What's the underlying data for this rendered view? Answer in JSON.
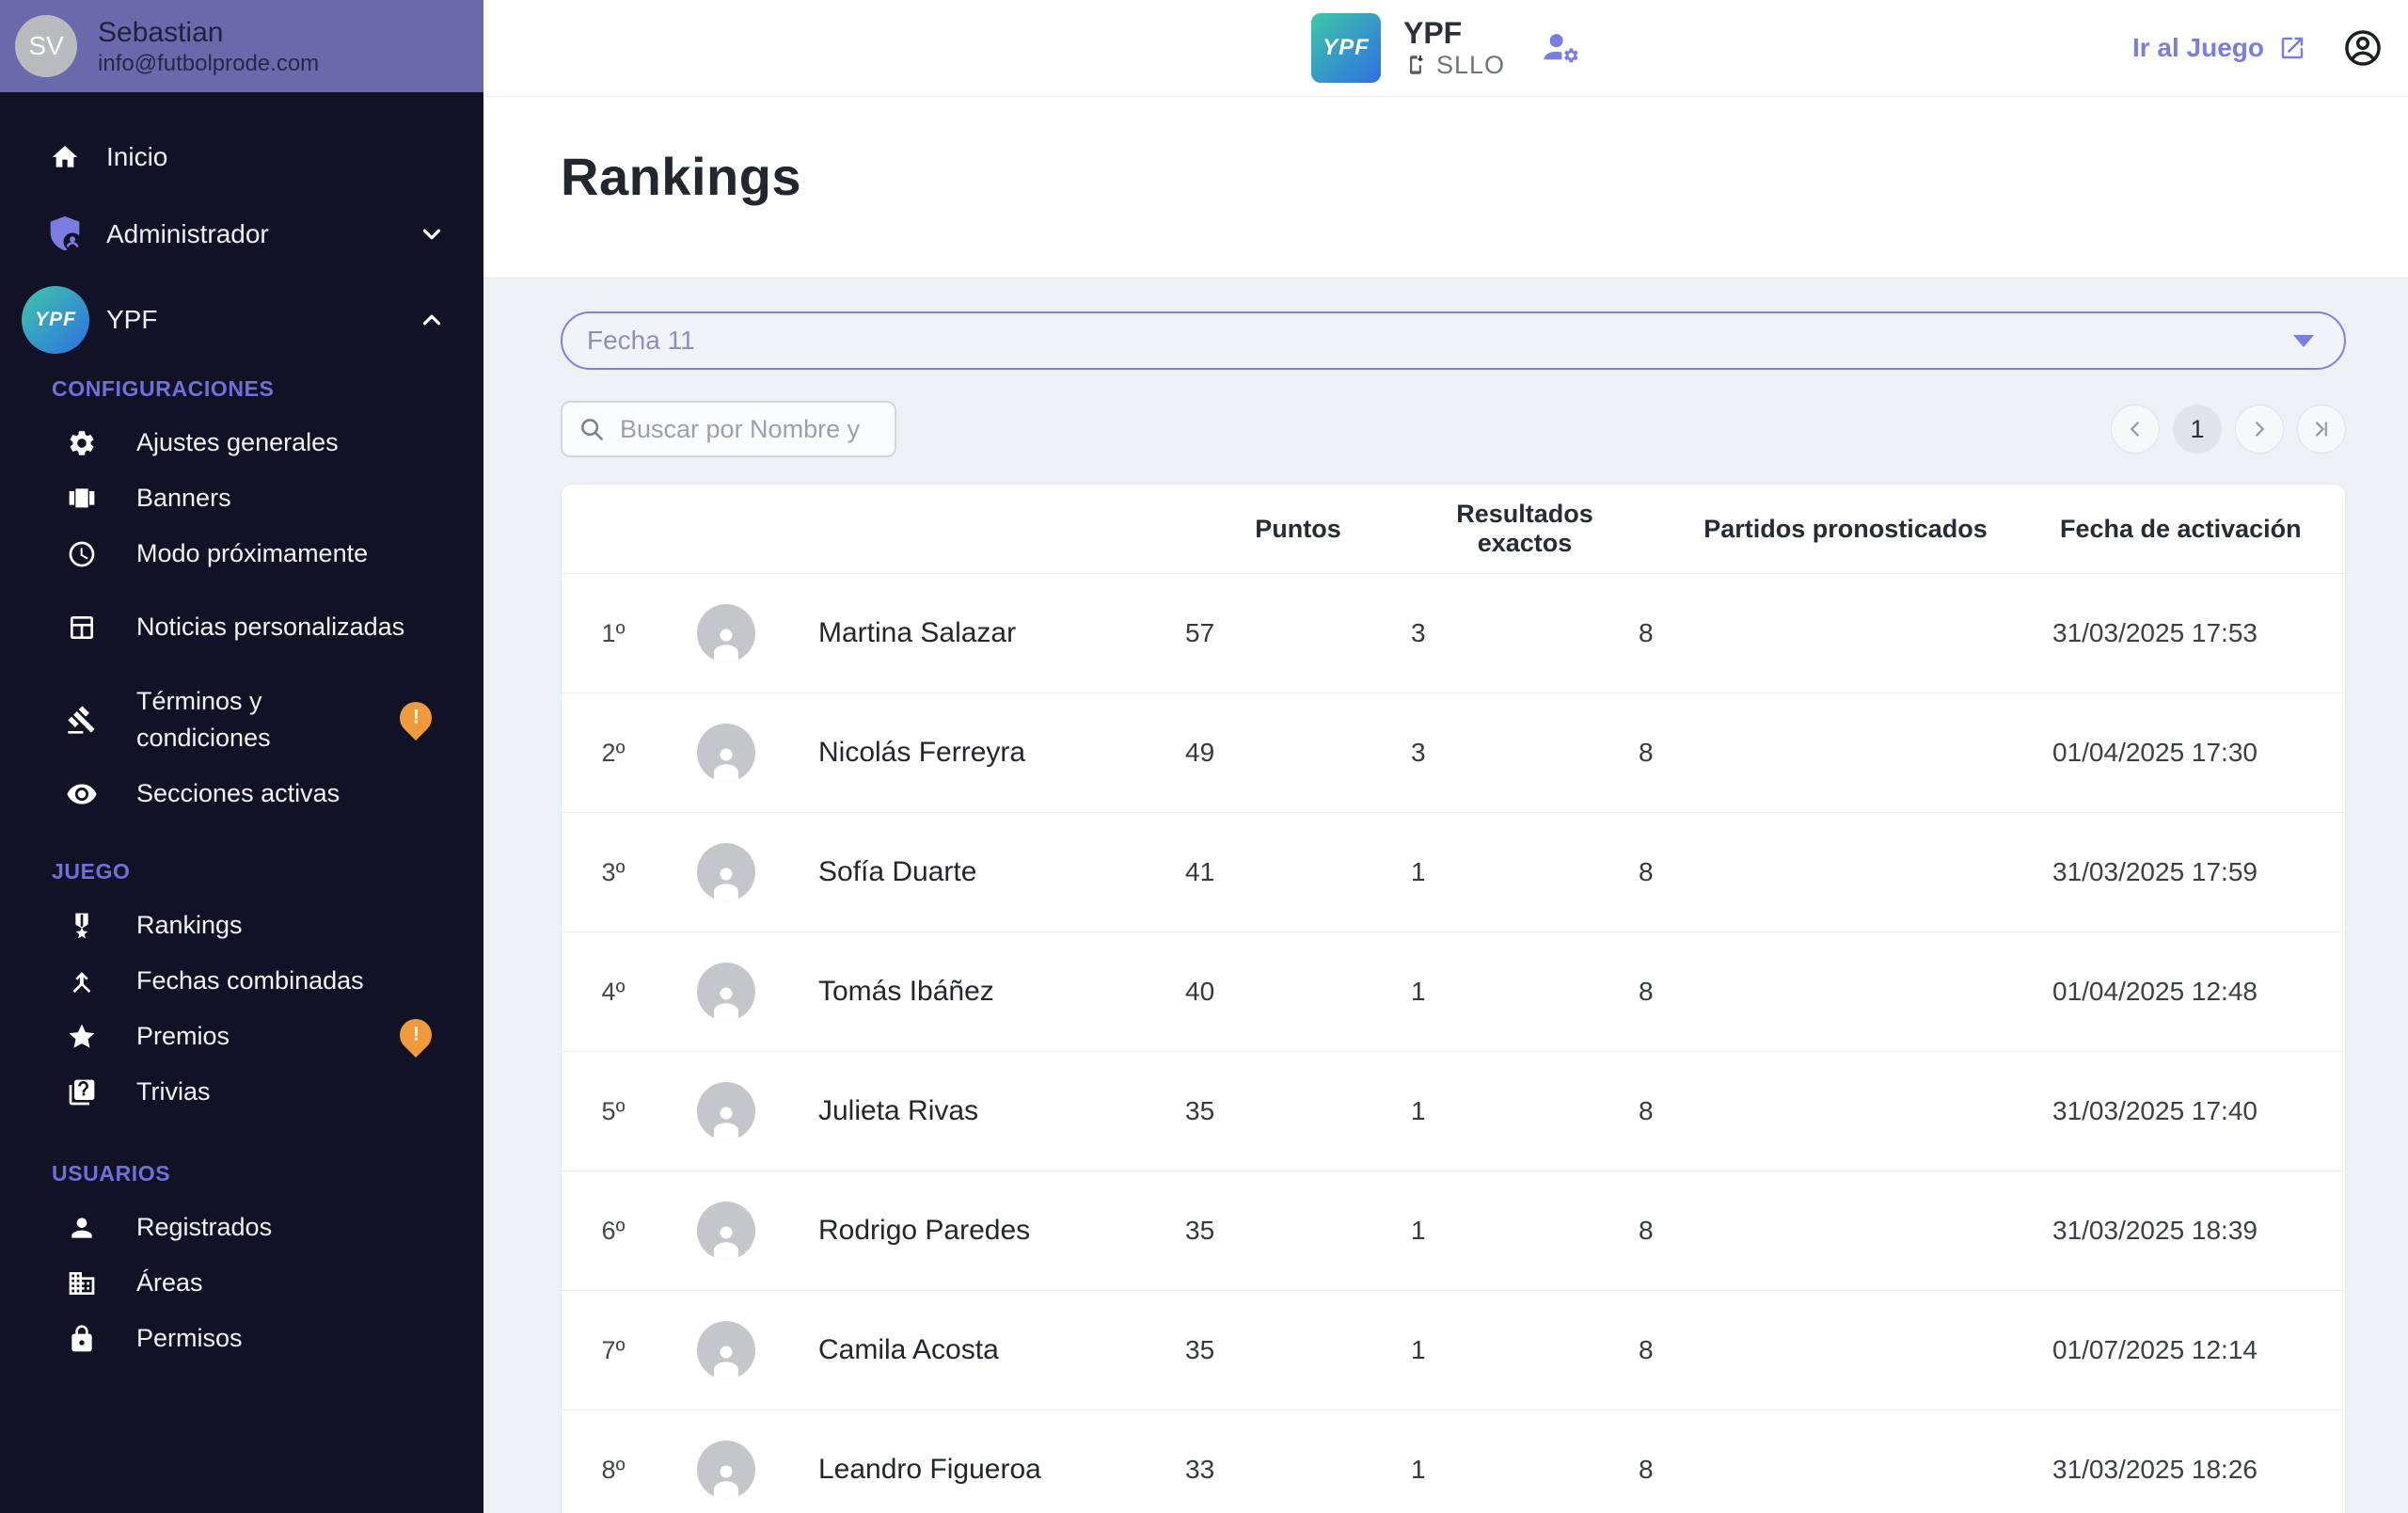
{
  "sidebar": {
    "user": {
      "initials": "SV",
      "name": "Sebastian",
      "email": "info@futbolprode.com"
    },
    "nav_top": [
      {
        "label": "Inicio",
        "icon": "home-icon"
      },
      {
        "label": "Administrador",
        "icon": "admin-shield-icon",
        "chevron": "down"
      },
      {
        "label": "YPF",
        "icon": "ypf-avatar",
        "avatar_text": "YPF",
        "chevron": "up"
      }
    ],
    "sections": [
      {
        "title": "CONFIGURACIONES",
        "items": [
          {
            "label": "Ajustes generales",
            "icon": "settings-gear-icon"
          },
          {
            "label": "Banners",
            "icon": "banners-icon"
          },
          {
            "label": "Modo próximamente",
            "icon": "clock-icon"
          },
          {
            "label": "Noticias personalizadas",
            "icon": "news-icon"
          },
          {
            "label": "Términos y condiciones",
            "icon": "gavel-icon",
            "badge": "!"
          },
          {
            "label": "Secciones activas",
            "icon": "eye-icon"
          }
        ]
      },
      {
        "title": "JUEGO",
        "items": [
          {
            "label": "Rankings",
            "icon": "medal-icon"
          },
          {
            "label": "Fechas combinadas",
            "icon": "merge-icon"
          },
          {
            "label": "Premios",
            "icon": "star-icon",
            "badge": "!"
          },
          {
            "label": "Trivias",
            "icon": "quiz-icon"
          }
        ]
      },
      {
        "title": "USUARIOS",
        "items": [
          {
            "label": "Registrados",
            "icon": "person-icon"
          },
          {
            "label": "Áreas",
            "icon": "building-icon"
          },
          {
            "label": "Permisos",
            "icon": "lock-icon"
          }
        ]
      }
    ]
  },
  "header": {
    "brand_logo_text": "YPF",
    "brand_title": "YPF",
    "brand_subtitle": "SLLO",
    "go_to_game_label": "Ir al Juego"
  },
  "page": {
    "title": "Rankings"
  },
  "filters": {
    "date_select_value": "Fecha 11",
    "search_placeholder": "Buscar por Nombre y"
  },
  "pagination": {
    "current_page": "1",
    "buttons": [
      {
        "name": "prev-page-button",
        "icon": "chevron-left-icon"
      },
      {
        "name": "page-1-button",
        "label": "1",
        "active": true
      },
      {
        "name": "next-page-button",
        "icon": "chevron-right-icon"
      },
      {
        "name": "last-page-button",
        "icon": "last-page-icon"
      }
    ]
  },
  "table": {
    "columns": [
      "Puntos",
      "Resultados exactos",
      "Partidos pronosticados",
      "Fecha de activación"
    ],
    "rows": [
      {
        "rank": "1º",
        "name": "Martina Salazar",
        "puntos": "57",
        "resultados_exactos": "3",
        "partidos_pronosticados": "8",
        "fecha_activacion": "31/03/2025 17:53"
      },
      {
        "rank": "2º",
        "name": "Nicolás Ferreyra",
        "puntos": "49",
        "resultados_exactos": "3",
        "partidos_pronosticados": "8",
        "fecha_activacion": "01/04/2025 17:30"
      },
      {
        "rank": "3º",
        "name": "Sofía Duarte",
        "puntos": "41",
        "resultados_exactos": "1",
        "partidos_pronosticados": "8",
        "fecha_activacion": "31/03/2025 17:59"
      },
      {
        "rank": "4º",
        "name": "Tomás Ibáñez",
        "puntos": "40",
        "resultados_exactos": "1",
        "partidos_pronosticados": "8",
        "fecha_activacion": "01/04/2025 12:48"
      },
      {
        "rank": "5º",
        "name": "Julieta Rivas",
        "puntos": "35",
        "resultados_exactos": "1",
        "partidos_pronosticados": "8",
        "fecha_activacion": "31/03/2025 17:40"
      },
      {
        "rank": "6º",
        "name": "Rodrigo Paredes",
        "puntos": "35",
        "resultados_exactos": "1",
        "partidos_pronosticados": "8",
        "fecha_activacion": "31/03/2025 18:39"
      },
      {
        "rank": "7º",
        "name": "Camila Acosta",
        "puntos": "35",
        "resultados_exactos": "1",
        "partidos_pronosticados": "8",
        "fecha_activacion": "01/07/2025 12:14"
      },
      {
        "rank": "8º",
        "name": "Leandro Figueroa",
        "puntos": "33",
        "resultados_exactos": "1",
        "partidos_pronosticados": "8",
        "fecha_activacion": "31/03/2025 18:26"
      }
    ]
  },
  "colors": {
    "accent_purple": "#7a7de2",
    "sidebar_bg": "#111226",
    "user_block_purple": "#6a69ac",
    "warning_orange": "#f09a3e",
    "page_bg": "#edf1f6",
    "brand_gradient_start": "#3fc7a9",
    "brand_gradient_end": "#2e6fe2"
  }
}
